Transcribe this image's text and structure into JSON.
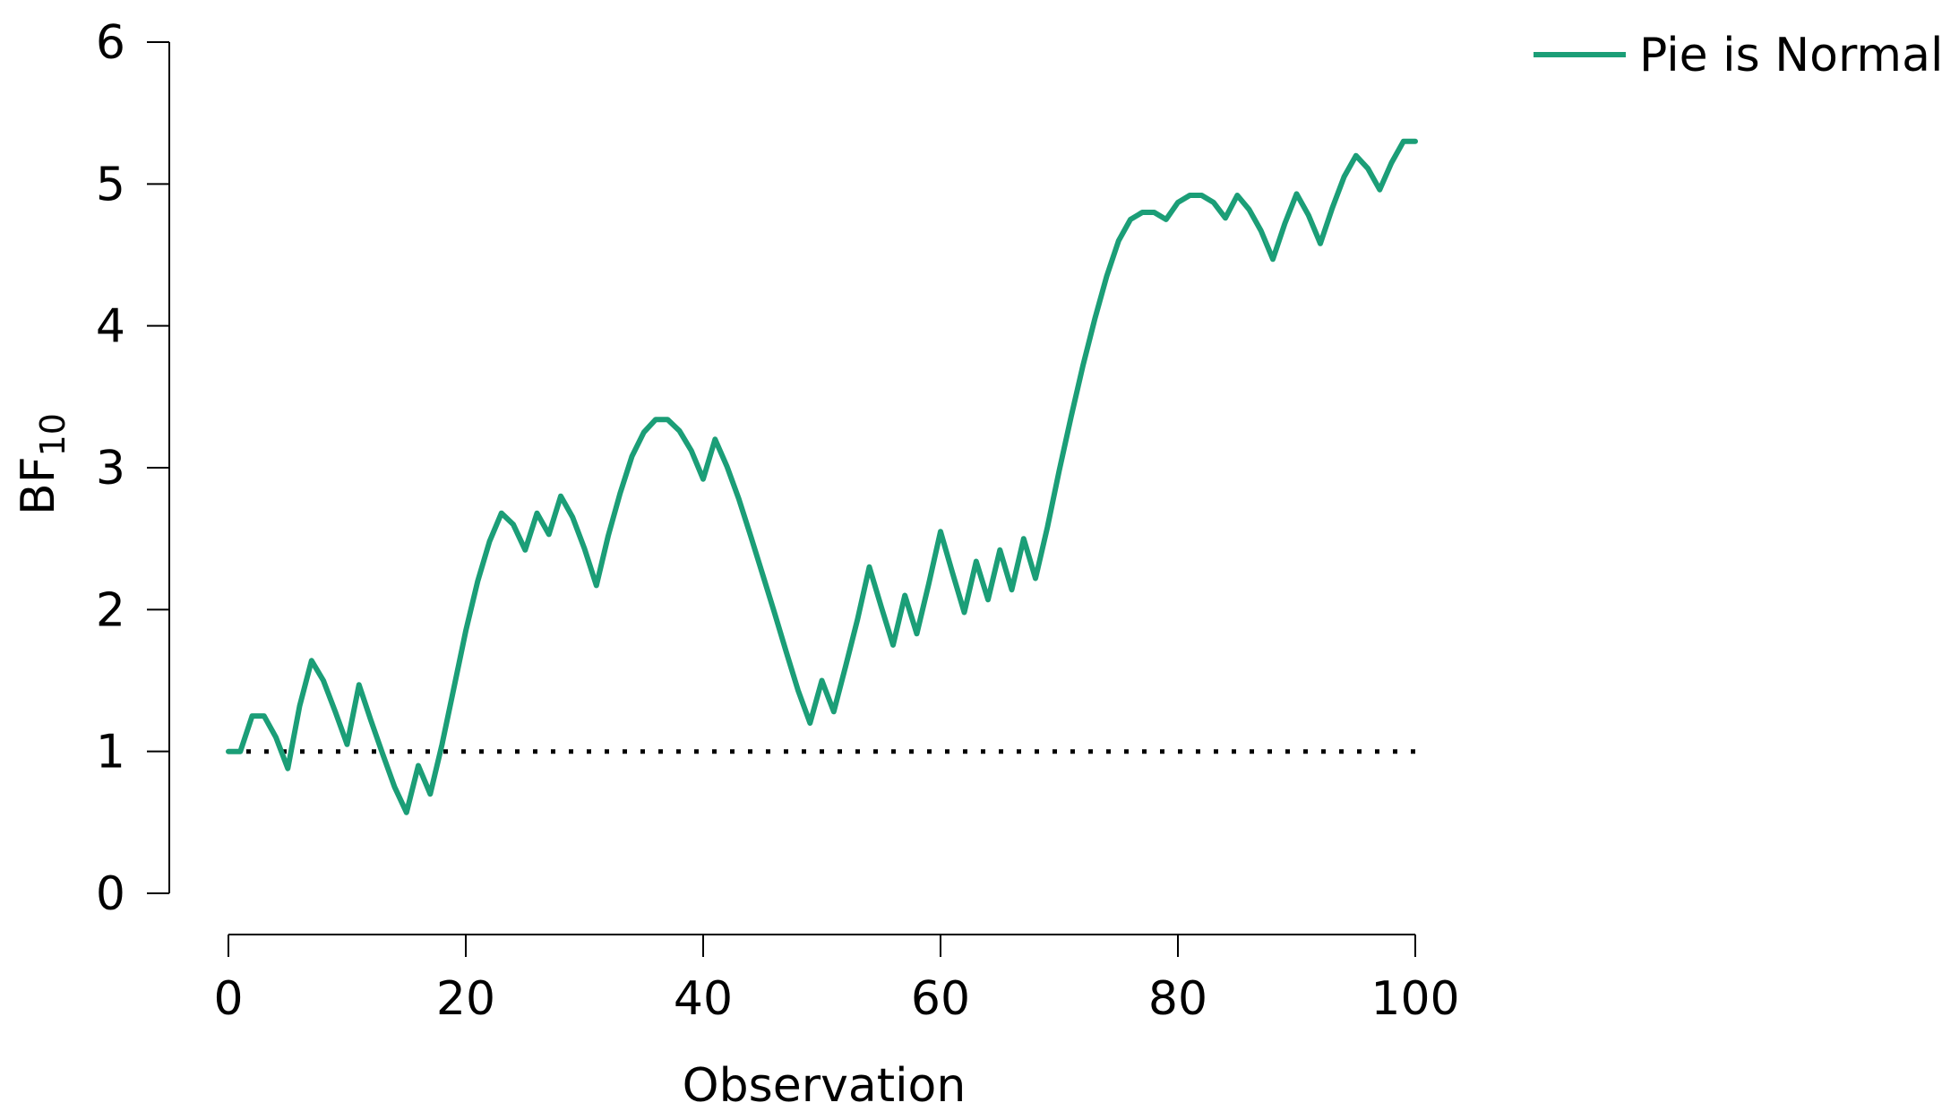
{
  "chart_data": {
    "type": "line",
    "xlabel": "Observation",
    "ylabel": {
      "main": "BF",
      "subscript": "10"
    },
    "xlim": [
      0,
      100
    ],
    "ylim": [
      0,
      6
    ],
    "xticks": [
      0,
      20,
      40,
      60,
      80,
      100
    ],
    "yticks": [
      0,
      1,
      2,
      3,
      4,
      5,
      6
    ],
    "grid": false,
    "legend_position": "top-right",
    "series": [
      {
        "name": "Pie is Normal",
        "color": "#1b9e77",
        "x": [
          0,
          1,
          2,
          3,
          4,
          5,
          6,
          7,
          8,
          9,
          10,
          11,
          12,
          13,
          14,
          15,
          16,
          17,
          18,
          19,
          20,
          21,
          22,
          23,
          24,
          25,
          26,
          27,
          28,
          29,
          30,
          31,
          32,
          33,
          34,
          35,
          36,
          37,
          38,
          39,
          40,
          41,
          42,
          43,
          44,
          45,
          46,
          47,
          48,
          49,
          50,
          51,
          52,
          53,
          54,
          55,
          56,
          57,
          58,
          59,
          60,
          61,
          62,
          63,
          64,
          65,
          66,
          67,
          68,
          69,
          70,
          71,
          72,
          73,
          74,
          75,
          76,
          77,
          78,
          79,
          80,
          81,
          82,
          83,
          84,
          85,
          86,
          87,
          88,
          89,
          90,
          91,
          92,
          93,
          94,
          95,
          96,
          97,
          98,
          99,
          100
        ],
        "y": [
          1.0,
          1.0,
          1.25,
          1.25,
          1.1,
          0.88,
          1.32,
          1.64,
          1.5,
          1.28,
          1.05,
          1.47,
          1.22,
          0.98,
          0.75,
          0.57,
          0.9,
          0.7,
          1.05,
          1.45,
          1.85,
          2.2,
          2.48,
          2.68,
          2.6,
          2.42,
          2.68,
          2.53,
          2.8,
          2.65,
          2.43,
          2.17,
          2.52,
          2.82,
          3.08,
          3.25,
          3.34,
          3.34,
          3.26,
          3.12,
          2.92,
          3.2,
          3.01,
          2.78,
          2.52,
          2.25,
          1.98,
          1.7,
          1.43,
          1.2,
          1.5,
          1.28,
          1.6,
          1.93,
          2.3,
          2.02,
          1.75,
          2.1,
          1.83,
          2.18,
          2.55,
          2.26,
          1.98,
          2.34,
          2.07,
          2.42,
          2.14,
          2.5,
          2.22,
          2.58,
          2.98,
          3.36,
          3.72,
          4.05,
          4.35,
          4.6,
          4.75,
          4.8,
          4.8,
          4.75,
          4.87,
          4.92,
          4.92,
          4.87,
          4.76,
          4.92,
          4.82,
          4.67,
          4.47,
          4.72,
          4.93,
          4.78,
          4.58,
          4.83,
          5.05,
          5.2,
          5.11,
          4.96,
          5.15,
          5.3,
          5.3
        ]
      },
      {
        "name": "",
        "style": "dotted",
        "color": "#000000",
        "x": [
          0,
          100
        ],
        "y": [
          1,
          1
        ]
      }
    ]
  }
}
